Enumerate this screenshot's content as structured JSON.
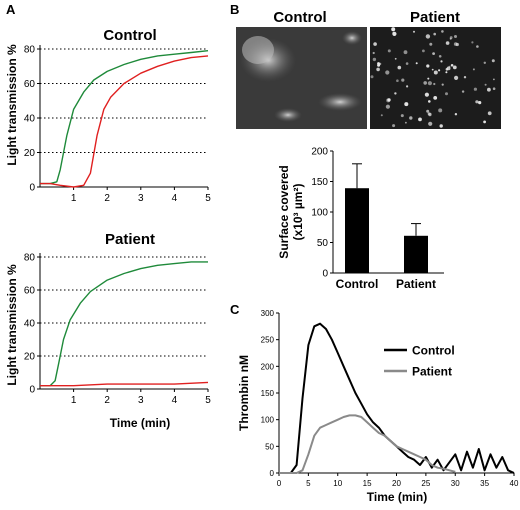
{
  "panels": {
    "A": "A",
    "B": "B",
    "C": "C"
  },
  "chart_data": [
    {
      "id": "A-control",
      "type": "line",
      "title": "Control",
      "ylabel": "Light transmission %",
      "xlabel": "",
      "xlim": [
        0,
        5
      ],
      "ylim": [
        0,
        80
      ],
      "xticks": [
        "1",
        "2",
        "3",
        "4",
        "5"
      ],
      "yticks": [
        "0",
        "20",
        "40",
        "60",
        "80"
      ],
      "grid": "horizontal dotted",
      "series": [
        {
          "color": "#1f8a3a",
          "x": [
            0,
            0.3,
            0.5,
            0.6,
            0.8,
            1.0,
            1.3,
            1.6,
            2.0,
            2.5,
            3.0,
            3.5,
            4.0,
            4.5,
            5.0
          ],
          "y": [
            2,
            2,
            3,
            10,
            30,
            45,
            55,
            62,
            67,
            71,
            74,
            76,
            77,
            78,
            79
          ]
        },
        {
          "color": "#e02020",
          "x": [
            0,
            0.3,
            0.6,
            1.0,
            1.3,
            1.5,
            1.7,
            1.9,
            2.1,
            2.5,
            3.0,
            3.5,
            4.0,
            4.5,
            5.0
          ],
          "y": [
            2,
            2,
            1,
            0,
            1,
            8,
            30,
            45,
            52,
            60,
            66,
            70,
            73,
            75,
            76
          ]
        }
      ]
    },
    {
      "id": "A-patient",
      "type": "line",
      "title": "Patient",
      "ylabel": "Light transmission %",
      "xlabel": "Time (min)",
      "xlim": [
        0,
        5
      ],
      "ylim": [
        0,
        80
      ],
      "xticks": [
        "1",
        "2",
        "3",
        "4",
        "5"
      ],
      "yticks": [
        "0",
        "20",
        "40",
        "60",
        "80"
      ],
      "grid": "horizontal dotted",
      "series": [
        {
          "color": "#1f8a3a",
          "x": [
            0,
            0.3,
            0.45,
            0.55,
            0.7,
            0.9,
            1.2,
            1.5,
            2.0,
            2.5,
            3.0,
            3.5,
            4.0,
            4.5,
            5.0
          ],
          "y": [
            2,
            2,
            5,
            15,
            30,
            42,
            52,
            59,
            66,
            70,
            73,
            75,
            76,
            77,
            77
          ]
        },
        {
          "color": "#e02020",
          "x": [
            0,
            0.5,
            1,
            2,
            3,
            4,
            5
          ],
          "y": [
            2,
            2,
            2,
            3,
            3,
            3,
            4
          ]
        }
      ]
    },
    {
      "id": "B-bar",
      "type": "bar",
      "title": "",
      "ylabel": "Surface covered (x10³ µm²)",
      "ylabel_line1": "Surface covered",
      "ylabel_line2": "(x10³ µm²)",
      "categories": [
        "Control",
        "Patient"
      ],
      "values": [
        139,
        61
      ],
      "errors": [
        40,
        20
      ],
      "ylim": [
        0,
        200
      ],
      "yticks": [
        "0",
        "50",
        "100",
        "150",
        "200"
      ]
    },
    {
      "id": "C-thrombin",
      "type": "line",
      "title": "",
      "ylabel": "Thrombin nM",
      "xlabel": "Time (min)",
      "xlim": [
        0,
        40
      ],
      "ylim": [
        0,
        300
      ],
      "xticks": [
        "0",
        "5",
        "10",
        "15",
        "20",
        "25",
        "30",
        "35",
        "40"
      ],
      "yticks": [
        "0",
        "50",
        "100",
        "150",
        "200",
        "250",
        "300"
      ],
      "legend": "top-right",
      "series": [
        {
          "name": "Control",
          "color": "#000000",
          "x": [
            0,
            2,
            3,
            4,
            5,
            6,
            7,
            8,
            9,
            10,
            11,
            12,
            13,
            14,
            15,
            16,
            17,
            18,
            19,
            20,
            21,
            22,
            23,
            24,
            25,
            26,
            27,
            28,
            29,
            30,
            31,
            32,
            33,
            34,
            35,
            36,
            37,
            38,
            39,
            40
          ],
          "y": [
            0,
            0,
            15,
            140,
            240,
            275,
            280,
            270,
            250,
            225,
            200,
            175,
            150,
            130,
            110,
            95,
            85,
            70,
            60,
            50,
            40,
            30,
            25,
            15,
            30,
            10,
            25,
            5,
            20,
            35,
            5,
            40,
            10,
            45,
            5,
            35,
            10,
            30,
            5,
            0
          ]
        },
        {
          "name": "Patient",
          "color": "#8a8a8a",
          "x": [
            0,
            3,
            4,
            5,
            6,
            7,
            8,
            9,
            10,
            11,
            12,
            13,
            14,
            15,
            16,
            17,
            18,
            19,
            20,
            21,
            22,
            23,
            24,
            25,
            26,
            27,
            28,
            29,
            30
          ],
          "y": [
            0,
            0,
            5,
            35,
            70,
            85,
            90,
            95,
            100,
            105,
            108,
            108,
            105,
            95,
            85,
            75,
            70,
            60,
            50,
            45,
            40,
            35,
            30,
            25,
            15,
            10,
            8,
            5,
            2
          ]
        }
      ]
    }
  ],
  "images": [
    {
      "label": "Control",
      "background": "#3a3a3a"
    },
    {
      "label": "Patient",
      "background": "#1c1c1c"
    }
  ]
}
